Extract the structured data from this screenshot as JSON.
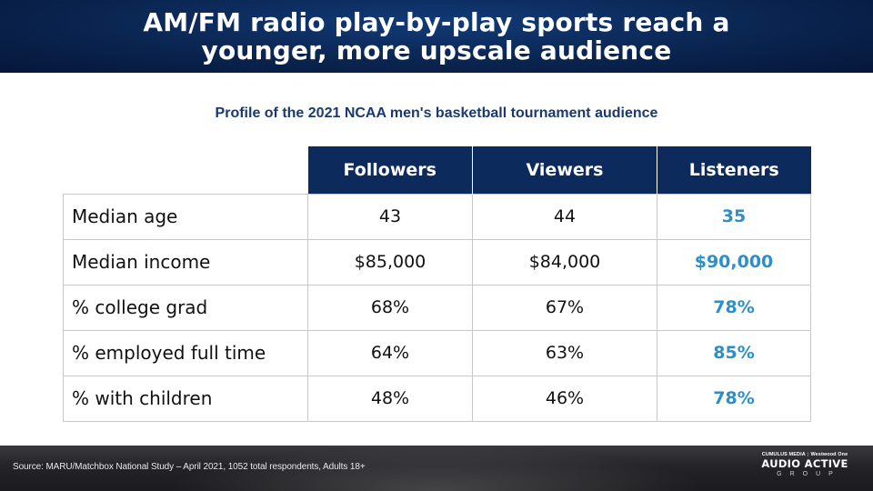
{
  "header": {
    "title_line1": "AM/FM radio play-by-play sports reach a",
    "title_line2": "younger, more upscale audience"
  },
  "subtitle": "Profile of the 2021 NCAA men's basketball tournament audience",
  "table": {
    "columns": [
      "Followers",
      "Viewers",
      "Listeners"
    ],
    "rows": [
      {
        "label": "Median age",
        "values": [
          "43",
          "44",
          "35"
        ]
      },
      {
        "label": "Median income",
        "values": [
          "$85,000",
          "$84,000",
          "$90,000"
        ]
      },
      {
        "label": "% college grad",
        "values": [
          "68%",
          "67%",
          "78%"
        ]
      },
      {
        "label": "% employed full time",
        "values": [
          "64%",
          "63%",
          "85%"
        ]
      },
      {
        "label": "% with children",
        "values": [
          "48%",
          "46%",
          "78%"
        ]
      }
    ],
    "highlight_color": "#2e8fc6",
    "header_color": "#0d2a5c"
  },
  "footer": {
    "source": "Source: MARU/Matchbox National Study – April 2021, 1052 total respondents, Adults 18+",
    "logo_top_left": "CUMULUS MEDIA",
    "logo_top_right": "Westwood One",
    "logo_main": "AUDIO ACTIVE",
    "logo_sub": "GROUP"
  }
}
